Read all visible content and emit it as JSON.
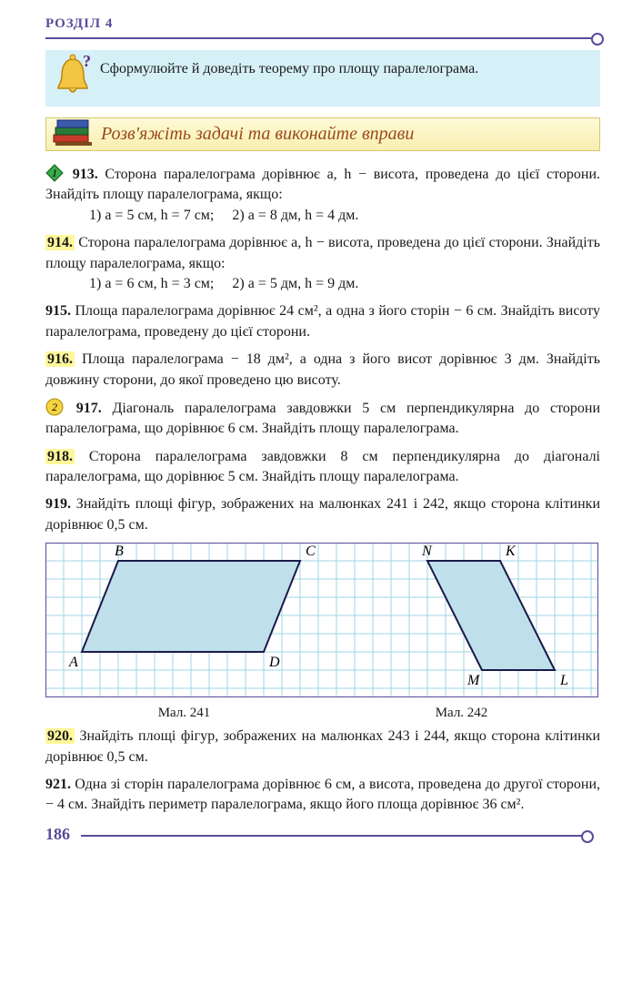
{
  "header": "РОЗДІЛ 4",
  "callout": "Сформулюйте й доведіть теорему про площу паралелограма.",
  "section_title": "Розв'яжіть задачі та виконайте вправи",
  "p913": {
    "num": "913.",
    "text": "Сторона паралелограма дорівнює a, h − висота, проведена до цієї сторони. Знайдіть площу паралелограма, якщо:",
    "sub1": "1) a = 5 см, h = 7 см;",
    "sub2": "2) a = 8 дм, h = 4 дм."
  },
  "p914": {
    "num": "914.",
    "text": "Сторона паралелограма дорівнює a, h − висота, проведена до цієї сторони. Знайдіть площу паралелограма, якщо:",
    "sub1": "1) a = 6 см, h = 3 см;",
    "sub2": "2) a = 5 дм, h = 9 дм."
  },
  "p915": {
    "num": "915.",
    "text": "Площа паралелограма дорівнює 24 см², а одна з його сторін − 6 см. Знайдіть висоту паралелограма, проведену до цієї сторони."
  },
  "p916": {
    "num": "916.",
    "text": "Площа паралелограма − 18 дм², а одна з його висот дорівнює 3 дм. Знайдіть довжину сторони, до якої проведено цю висоту."
  },
  "p917": {
    "num": "917.",
    "text": "Діагональ паралелограма завдовжки 5 см перпендикулярна до сторони паралелограма, що дорівнює 6 см. Знайдіть площу паралелограма."
  },
  "p918": {
    "num": "918.",
    "text": "Сторона паралелограма завдовжки 8 см перпендикулярна до діагоналі паралелограма, що дорівнює 5 см. Знайдіть площу паралелограма."
  },
  "p919": {
    "num": "919.",
    "text": "Знайдіть площі фігур, зображених на малюнках 241 і 242, якщо сторона клітинки дорівнює 0,5 см."
  },
  "figures": {
    "grid_color": "#9fd4e6",
    "border_color": "#5a4a9a",
    "fill_color": "#bfe0eb",
    "label_font": "italic 16px Georgia",
    "fig241": {
      "caption": "Мал. 241",
      "labels": {
        "A": "A",
        "B": "B",
        "C": "C",
        "D": "D"
      },
      "points": {
        "A": [
          2,
          6
        ],
        "B": [
          4,
          1
        ],
        "C": [
          14,
          1
        ],
        "D": [
          12,
          6
        ]
      }
    },
    "fig242": {
      "caption": "Мал. 242",
      "labels": {
        "N": "N",
        "K": "K",
        "M": "M",
        "L": "L"
      },
      "points": {
        "N": [
          3,
          1
        ],
        "K": [
          7,
          1
        ],
        "M": [
          6,
          7
        ],
        "L": [
          10,
          7
        ]
      }
    }
  },
  "p920": {
    "num": "920.",
    "text": "Знайдіть площі фігур, зображених на малюнках 243 і 244, якщо сторона клітинки дорівнює 0,5 см."
  },
  "p921": {
    "num": "921.",
    "text": "Одна зі сторін паралелограма дорівнює 6 см, а висота, проведена до другої сторони, − 4 см. Знайдіть периметр паралелограма, якщо його площа дорівнює 36 см²."
  },
  "page_number": "186"
}
